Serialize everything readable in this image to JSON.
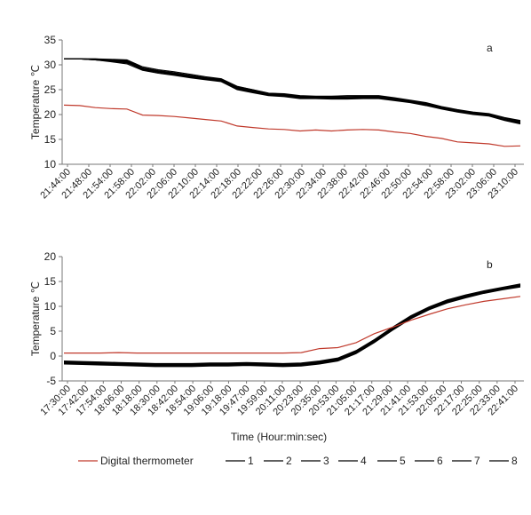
{
  "chart_data": [
    {
      "type": "line",
      "panel_label": "a",
      "ylabel": "Temperature ℃",
      "ylim": [
        10,
        35
      ],
      "yticks": [
        10,
        15,
        20,
        25,
        30,
        35
      ],
      "xtick_labels": [
        "21:44:00",
        "21:48:00",
        "21:54:00",
        "21:58:00",
        "22:02:00",
        "22:06:00",
        "22:10:00",
        "22:14:00",
        "22:18:00",
        "22:22:00",
        "22:26:00",
        "22:30:00",
        "22:34:00",
        "22:38:00",
        "22:42:00",
        "22:46:00",
        "22:50:00",
        "22:54:00",
        "22:58:00",
        "23:02:00",
        "23:06:00",
        "23:10:00"
      ],
      "series": [
        {
          "name": "Digital thermometer",
          "color": "#c0392b",
          "values": [
            21.9,
            21.8,
            21.4,
            21.2,
            21.1,
            19.9,
            19.8,
            19.6,
            19.3,
            19.0,
            18.7,
            17.7,
            17.4,
            17.1,
            17.0,
            16.7,
            16.9,
            16.7,
            16.9,
            17.0,
            16.9,
            16.5,
            16.2,
            15.6,
            15.2,
            14.5,
            14.3,
            14.1,
            13.6,
            13.7
          ]
        },
        {
          "name": "1",
          "color": "#000000",
          "values": [
            31.2,
            31.2,
            31.1,
            30.9,
            30.7,
            29.1,
            28.5,
            28.2,
            27.6,
            27.2,
            26.8,
            25.2,
            24.6,
            24.0,
            23.8,
            23.4,
            23.4,
            23.3,
            23.3,
            23.4,
            23.4,
            23.0,
            22.6,
            22.0,
            21.2,
            20.6,
            20.1,
            19.8,
            18.9,
            18.3
          ]
        },
        {
          "name": "2",
          "color": "#000000",
          "values": [
            31.2,
            31.2,
            31.2,
            31.0,
            30.9,
            29.4,
            28.8,
            28.4,
            27.9,
            27.4,
            27.0,
            25.5,
            24.9,
            24.2,
            24.0,
            23.6,
            23.6,
            23.5,
            23.6,
            23.6,
            23.6,
            23.2,
            22.7,
            22.2,
            21.4,
            20.8,
            20.3,
            20.0,
            19.2,
            18.6
          ]
        },
        {
          "name": "3",
          "color": "#000000",
          "values": [
            31.2,
            31.2,
            31.0,
            30.6,
            30.2,
            28.9,
            28.3,
            27.9,
            27.4,
            27.0,
            26.6,
            25.0,
            24.4,
            23.8,
            23.6,
            23.2,
            23.2,
            23.1,
            23.1,
            23.2,
            23.2,
            22.8,
            22.4,
            21.8,
            21.1,
            20.5,
            20.0,
            19.7,
            18.8,
            18.1
          ]
        },
        {
          "name": "4",
          "color": "#000000",
          "values": [
            31.2,
            31.2,
            31.1,
            30.8,
            30.5,
            29.0,
            28.6,
            28.1,
            27.7,
            27.2,
            26.8,
            25.3,
            24.7,
            24.1,
            23.9,
            23.4,
            23.4,
            23.4,
            23.4,
            23.5,
            23.5,
            23.1,
            22.6,
            22.1,
            21.3,
            20.7,
            20.2,
            19.9,
            19.0,
            18.4
          ]
        },
        {
          "name": "5",
          "color": "#000000",
          "values": [
            31.2,
            31.2,
            31.2,
            31.1,
            31.0,
            29.6,
            29.0,
            28.6,
            28.1,
            27.6,
            27.2,
            25.7,
            25.0,
            24.3,
            24.2,
            23.8,
            23.7,
            23.7,
            23.8,
            23.8,
            23.8,
            23.4,
            22.9,
            22.4,
            21.6,
            21.0,
            20.5,
            20.2,
            19.4,
            18.8
          ]
        },
        {
          "name": "6",
          "color": "#000000",
          "values": [
            31.2,
            31.2,
            31.0,
            30.7,
            30.4,
            29.2,
            28.7,
            28.3,
            27.8,
            27.3,
            26.9,
            25.4,
            24.8,
            24.1,
            23.9,
            23.5,
            23.5,
            23.4,
            23.4,
            23.5,
            23.5,
            23.1,
            22.7,
            22.1,
            21.3,
            20.7,
            20.2,
            19.8,
            19.0,
            18.5
          ]
        },
        {
          "name": "7",
          "color": "#000000",
          "values": [
            31.2,
            31.2,
            31.1,
            30.9,
            30.8,
            29.3,
            28.8,
            28.4,
            27.9,
            27.4,
            27.1,
            25.6,
            25.0,
            24.3,
            24.1,
            23.7,
            23.6,
            23.6,
            23.6,
            23.7,
            23.7,
            23.3,
            22.8,
            22.3,
            21.5,
            20.9,
            20.4,
            20.1,
            19.3,
            18.7
          ]
        },
        {
          "name": "8",
          "color": "#000000",
          "values": [
            31.2,
            31.2,
            31.0,
            30.8,
            30.6,
            29.0,
            28.5,
            28.0,
            27.5,
            27.1,
            26.7,
            25.1,
            24.5,
            23.9,
            23.7,
            23.3,
            23.3,
            23.2,
            23.2,
            23.3,
            23.3,
            22.9,
            22.5,
            21.9,
            21.2,
            20.6,
            20.1,
            19.8,
            18.9,
            18.2
          ]
        }
      ]
    },
    {
      "type": "line",
      "panel_label": "b",
      "xlabel": "Time (Hour:min:sec)",
      "ylabel": "Temperature ℃",
      "ylim": [
        -5,
        20
      ],
      "yticks": [
        -5,
        0,
        5,
        10,
        15,
        20
      ],
      "xtick_labels": [
        "17:30:00",
        "17:42:00",
        "17:54:00",
        "18:06:00",
        "18:18:00",
        "18:30:00",
        "18:42:00",
        "18:54:00",
        "19:06:00",
        "19:18:00",
        "19:47:00",
        "19:59:00",
        "20:11:00",
        "20:23:00",
        "20:35:00",
        "20:53:00",
        "21:05:00",
        "21:17:00",
        "21:29:00",
        "21:41:00",
        "21:53:00",
        "22:05:00",
        "22:17:00",
        "22:25:00",
        "22:33:00",
        "22:41:00"
      ],
      "series": [
        {
          "name": "Digital thermometer",
          "color": "#c0392b",
          "values": [
            0.6,
            0.6,
            0.6,
            0.7,
            0.6,
            0.6,
            0.6,
            0.6,
            0.6,
            0.6,
            0.6,
            0.6,
            0.6,
            0.7,
            1.5,
            1.7,
            2.7,
            4.5,
            5.8,
            7.2,
            8.4,
            9.5,
            10.3,
            11.0,
            11.5,
            12.0
          ]
        },
        {
          "name": "1",
          "color": "#000000",
          "values": [
            -1.3,
            -1.4,
            -1.5,
            -1.6,
            -1.7,
            -1.8,
            -1.8,
            -1.8,
            -1.7,
            -1.7,
            -1.6,
            -1.7,
            -1.8,
            -1.7,
            -1.3,
            -0.7,
            0.8,
            3.0,
            5.5,
            7.8,
            9.6,
            11.0,
            12.0,
            12.9,
            13.6,
            14.2
          ]
        },
        {
          "name": "2",
          "color": "#000000",
          "values": [
            -1.1,
            -1.2,
            -1.3,
            -1.4,
            -1.5,
            -1.6,
            -1.6,
            -1.6,
            -1.5,
            -1.5,
            -1.4,
            -1.5,
            -1.6,
            -1.5,
            -1.1,
            -0.5,
            1.0,
            3.2,
            5.7,
            8.0,
            9.8,
            11.2,
            12.2,
            13.0,
            13.7,
            14.3
          ]
        },
        {
          "name": "3",
          "color": "#000000",
          "values": [
            -1.5,
            -1.6,
            -1.7,
            -1.8,
            -1.9,
            -2.0,
            -2.0,
            -2.0,
            -1.9,
            -1.9,
            -1.8,
            -1.9,
            -2.0,
            -1.9,
            -1.5,
            -0.9,
            0.6,
            2.8,
            5.3,
            7.6,
            9.4,
            10.8,
            11.8,
            12.7,
            13.4,
            14.0
          ]
        },
        {
          "name": "4",
          "color": "#000000",
          "values": [
            -1.2,
            -1.3,
            -1.4,
            -1.5,
            -1.6,
            -1.7,
            -1.7,
            -1.7,
            -1.6,
            -1.6,
            -1.5,
            -1.6,
            -1.7,
            -1.6,
            -1.2,
            -0.6,
            0.9,
            3.1,
            5.6,
            7.9,
            9.7,
            11.1,
            12.1,
            13.0,
            13.7,
            14.4
          ]
        },
        {
          "name": "5",
          "color": "#000000",
          "values": [
            -1.0,
            -1.1,
            -1.2,
            -1.3,
            -1.4,
            -1.5,
            -1.5,
            -1.5,
            -1.4,
            -1.4,
            -1.3,
            -1.4,
            -1.5,
            -1.4,
            -1.0,
            -0.4,
            1.1,
            3.3,
            5.8,
            8.1,
            9.9,
            11.3,
            12.3,
            13.1,
            13.8,
            14.5
          ]
        },
        {
          "name": "6",
          "color": "#000000",
          "values": [
            -1.4,
            -1.5,
            -1.6,
            -1.7,
            -1.8,
            -1.9,
            -1.9,
            -1.9,
            -1.8,
            -1.8,
            -1.7,
            -1.8,
            -1.9,
            -1.8,
            -1.4,
            -0.8,
            0.7,
            2.9,
            5.4,
            7.7,
            9.5,
            10.9,
            11.9,
            12.8,
            13.5,
            14.1
          ]
        },
        {
          "name": "7",
          "color": "#000000",
          "values": [
            -1.2,
            -1.3,
            -1.4,
            -1.5,
            -1.6,
            -1.7,
            -1.7,
            -1.7,
            -1.6,
            -1.6,
            -1.5,
            -1.6,
            -1.7,
            -1.6,
            -1.2,
            -0.6,
            0.9,
            3.1,
            5.6,
            7.9,
            9.7,
            11.1,
            12.1,
            12.9,
            13.6,
            14.3
          ]
        },
        {
          "name": "8",
          "color": "#000000",
          "values": [
            -1.6,
            -1.7,
            -1.8,
            -1.9,
            -2.0,
            -2.1,
            -2.1,
            -2.1,
            -2.0,
            -2.0,
            -1.9,
            -2.0,
            -2.1,
            -2.0,
            -1.6,
            -1.0,
            0.5,
            2.7,
            5.2,
            7.5,
            9.3,
            10.7,
            11.7,
            12.6,
            13.3,
            13.9
          ]
        }
      ]
    }
  ],
  "legend": {
    "entries": [
      {
        "label": "Digital thermometer",
        "color": "#c0392b"
      },
      {
        "label": "1",
        "color": "#000000"
      },
      {
        "label": "2",
        "color": "#000000"
      },
      {
        "label": "3",
        "color": "#000000"
      },
      {
        "label": "4",
        "color": "#000000"
      },
      {
        "label": "5",
        "color": "#000000"
      },
      {
        "label": "6",
        "color": "#000000"
      },
      {
        "label": "7",
        "color": "#000000"
      },
      {
        "label": "8",
        "color": "#000000"
      }
    ]
  }
}
